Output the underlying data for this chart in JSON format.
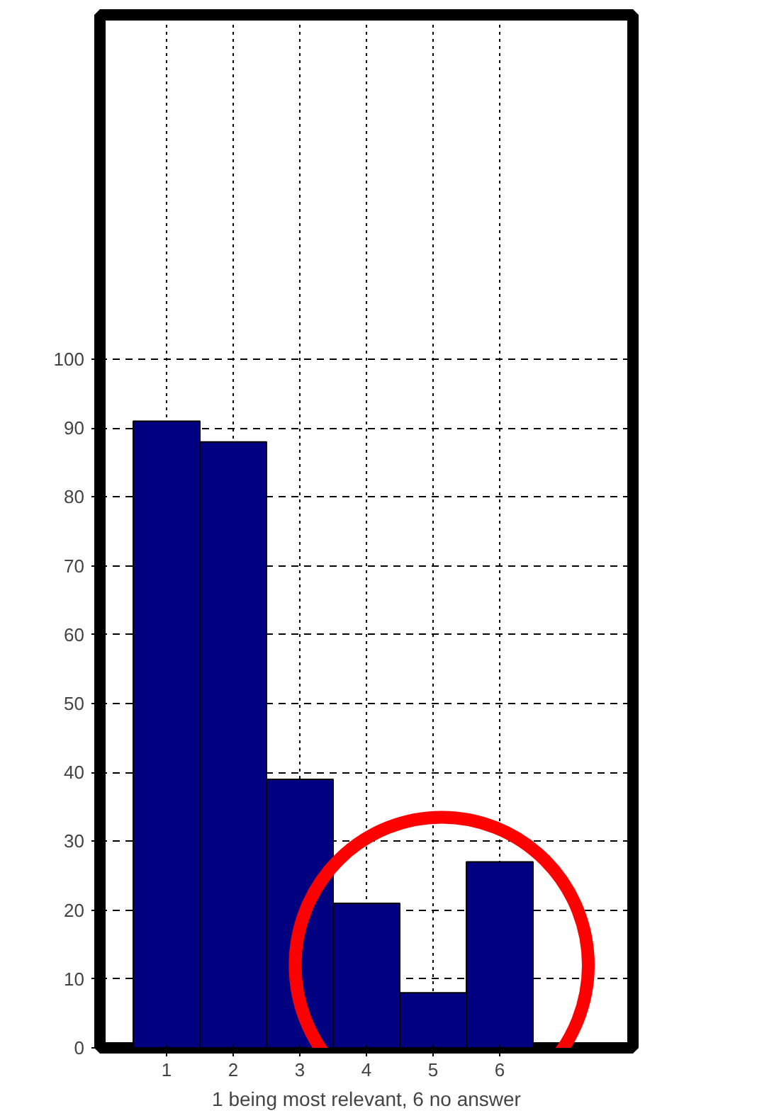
{
  "chart_data": {
    "type": "bar",
    "xlabel": "1 being most relevant, 6 no answer",
    "x": [
      1,
      2,
      3,
      4,
      5,
      6
    ],
    "values": [
      91,
      88,
      39,
      21,
      8,
      27
    ],
    "color": "#000080",
    "xlim": [
      0,
      8
    ],
    "xticks": [
      1,
      2,
      3,
      4,
      5,
      6
    ],
    "ylim": [
      0,
      150
    ],
    "yticks": [
      0,
      10,
      20,
      30,
      40,
      50,
      60,
      70,
      80,
      90,
      100
    ],
    "grid": true
  }
}
